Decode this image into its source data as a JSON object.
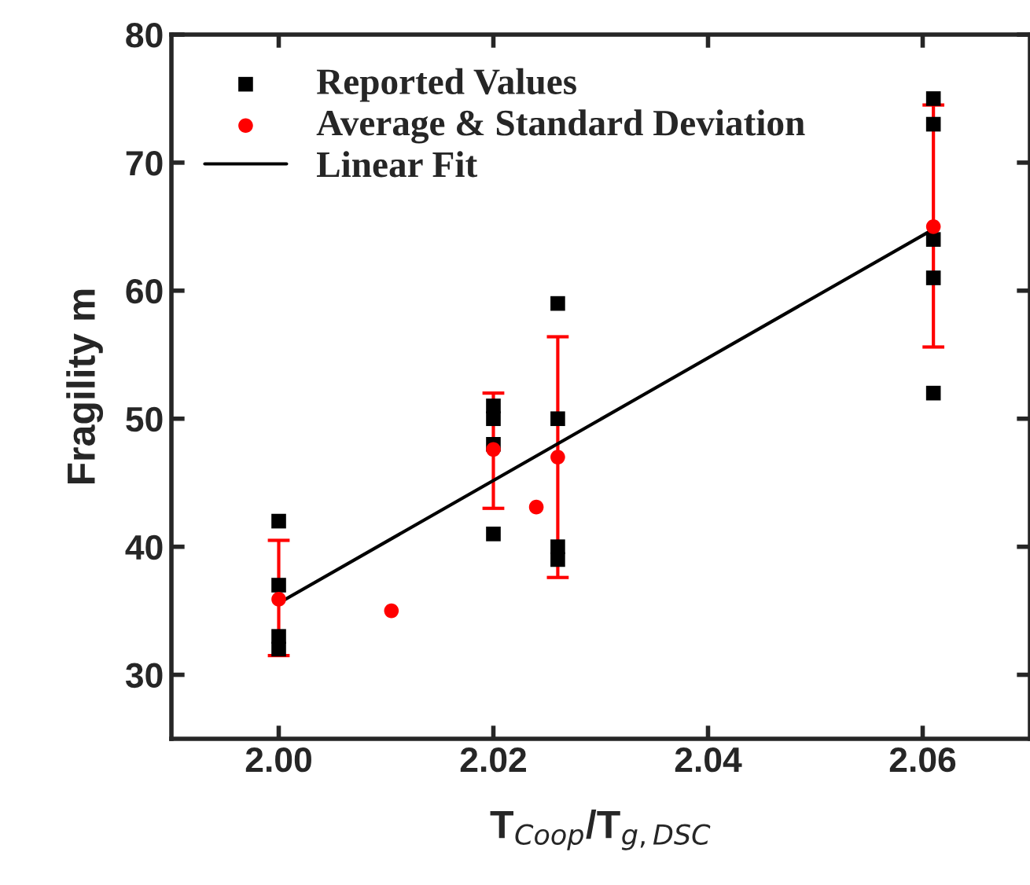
{
  "chart_data": {
    "type": "scatter",
    "xlabel": "T$_{Coop}$/T$_{g,DSC}$",
    "ylabel": "Fragility m",
    "xlim": [
      1.99,
      2.07
    ],
    "ylim": [
      25,
      80
    ],
    "xticks": [
      {
        "value": 2.0,
        "label": "2.00"
      },
      {
        "value": 2.02,
        "label": "2.02"
      },
      {
        "value": 2.04,
        "label": "2.04"
      },
      {
        "value": 2.06,
        "label": "2.06"
      }
    ],
    "yticks": [
      30,
      40,
      50,
      60,
      70,
      80
    ],
    "grid": false,
    "legend": "top left",
    "series": [
      {
        "name": "Reported Values",
        "color": "#000000",
        "marker": "square",
        "x": [
          2.0,
          2.0,
          2.0,
          2.0,
          2.0105,
          2.02,
          2.02,
          2.02,
          2.02,
          2.024,
          2.026,
          2.026,
          2.026,
          2.026,
          2.061,
          2.061,
          2.061,
          2.061,
          2.061
        ],
        "values": [
          42,
          37,
          33,
          32,
          null,
          51,
          50,
          48,
          41,
          null,
          59,
          50,
          40,
          39,
          75,
          73,
          64,
          61,
          52
        ]
      },
      {
        "name": "Average & Standard Deviation",
        "color": "#ff0000",
        "marker": "circle",
        "x": [
          2.0,
          2.0105,
          2.02,
          2.024,
          2.026,
          2.061
        ],
        "values": [
          35.9,
          35,
          47.6,
          43.1,
          47,
          65
        ],
        "errors": [
          [
            31.5,
            40.5
          ],
          null,
          [
            43,
            52
          ],
          null,
          [
            37.6,
            56.4
          ],
          [
            55.6,
            74.5
          ]
        ]
      },
      {
        "name": "Linear Fit",
        "type": "line",
        "color": "#000000",
        "marker": "none",
        "line_style": "solid",
        "x": [
          2.0,
          2.061
        ],
        "values": [
          35.6,
          64.8
        ]
      }
    ]
  }
}
